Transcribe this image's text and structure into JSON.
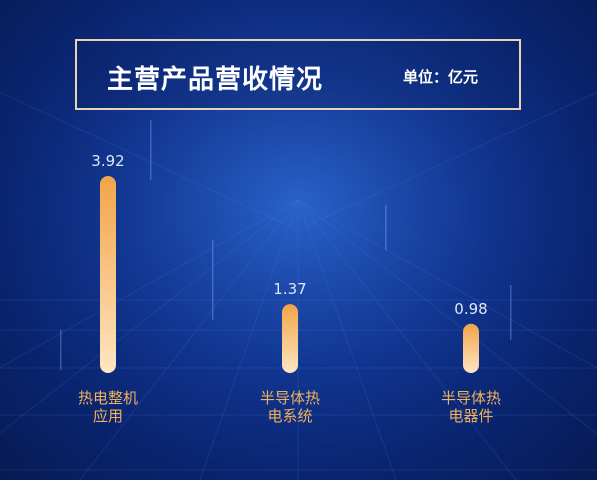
{
  "header": {
    "title": "主营产品营收情况",
    "unit": "单位：亿元"
  },
  "colors": {
    "bar_top": "#f2a448",
    "bar_bottom": "#fde6c2",
    "value_label": "#dfe6f5",
    "category_label": "#f0b15c",
    "frame": "#e8d3b5"
  },
  "chart_data": {
    "type": "bar",
    "title": "主营产品营收情况",
    "unit": "单位：亿元",
    "categories": [
      [
        "热电整机",
        "应用"
      ],
      [
        "半导体热",
        "电系统"
      ],
      [
        "半导体热",
        "电器件"
      ]
    ],
    "values": [
      3.92,
      1.37,
      0.98
    ],
    "ylim": [
      0,
      3.92
    ],
    "grid": false,
    "legend": "none"
  }
}
